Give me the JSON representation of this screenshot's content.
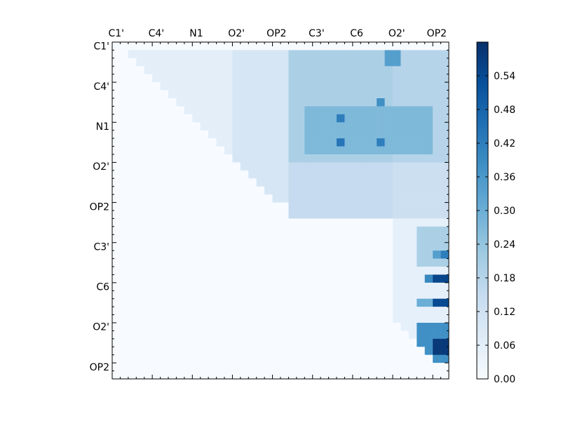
{
  "chart_data": {
    "type": "heatmap",
    "title": "",
    "xlabel": "",
    "ylabel": "",
    "grid": false,
    "x_tick_labels": [
      "C1'",
      "C4'",
      "N1",
      "O2'",
      "OP2",
      "C3'",
      "C6",
      "O2'",
      "OP2"
    ],
    "y_tick_labels": [
      "C1'",
      "C4'",
      "N1",
      "O2'",
      "OP2",
      "C3'",
      "C6",
      "O2'",
      "OP2"
    ],
    "matrix_size": 42,
    "tick_every": 5,
    "value_range": [
      0.0,
      0.6
    ],
    "colormap": "Blues",
    "colorbar": {
      "placement": "right",
      "ticks": [
        0.0,
        0.06,
        0.12,
        0.18,
        0.24,
        0.3,
        0.36,
        0.42,
        0.48,
        0.54
      ],
      "tick_labels": [
        "0.00",
        "0.06",
        "0.12",
        "0.18",
        "0.24",
        "0.30",
        "0.36",
        "0.42",
        "0.48",
        "0.54"
      ],
      "min": 0.0,
      "max": 0.6
    },
    "blocks": [
      {
        "r0": 1,
        "r1": 14,
        "c0": 2,
        "c1": 15,
        "v": 0.06
      },
      {
        "r0": 1,
        "r1": 20,
        "c0": 15,
        "c1": 22,
        "v": 0.1
      },
      {
        "r0": 1,
        "r1": 22,
        "c0": 22,
        "c1": 30,
        "v": 0.2
      },
      {
        "r0": 1,
        "r1": 22,
        "c0": 30,
        "c1": 35,
        "v": 0.2
      },
      {
        "r0": 1,
        "r1": 22,
        "c0": 35,
        "c1": 42,
        "v": 0.18
      },
      {
        "r0": 8,
        "r1": 14,
        "c0": 24,
        "c1": 40,
        "v": 0.27
      },
      {
        "r0": 1,
        "r1": 3,
        "c0": 34,
        "c1": 36,
        "v": 0.34
      },
      {
        "r0": 9,
        "r1": 10,
        "c0": 28,
        "c1": 29,
        "v": 0.42
      },
      {
        "r0": 12,
        "r1": 13,
        "c0": 28,
        "c1": 29,
        "v": 0.44
      },
      {
        "r0": 12,
        "r1": 13,
        "c0": 33,
        "c1": 34,
        "v": 0.42
      },
      {
        "r0": 7,
        "r1": 8,
        "c0": 33,
        "c1": 34,
        "v": 0.38
      },
      {
        "r0": 15,
        "r1": 22,
        "c0": 22,
        "c1": 35,
        "v": 0.15
      },
      {
        "r0": 15,
        "r1": 22,
        "c0": 35,
        "c1": 42,
        "v": 0.13
      },
      {
        "r0": 22,
        "r1": 40,
        "c0": 35,
        "c1": 42,
        "v": 0.05
      },
      {
        "r0": 23,
        "r1": 28,
        "c0": 38,
        "c1": 42,
        "v": 0.2
      },
      {
        "r0": 26,
        "r1": 27,
        "c0": 40,
        "c1": 41,
        "v": 0.34
      },
      {
        "r0": 26,
        "r1": 27,
        "c0": 41,
        "c1": 42,
        "v": 0.42
      },
      {
        "r0": 29,
        "r1": 30,
        "c0": 40,
        "c1": 42,
        "v": 0.55
      },
      {
        "r0": 29,
        "r1": 30,
        "c0": 39,
        "c1": 40,
        "v": 0.4
      },
      {
        "r0": 32,
        "r1": 33,
        "c0": 40,
        "c1": 42,
        "v": 0.54
      },
      {
        "r0": 32,
        "r1": 33,
        "c0": 38,
        "c1": 40,
        "v": 0.3
      },
      {
        "r0": 35,
        "r1": 40,
        "c0": 38,
        "c1": 42,
        "v": 0.38
      },
      {
        "r0": 37,
        "r1": 39,
        "c0": 40,
        "c1": 42,
        "v": 0.58
      },
      {
        "r0": 39,
        "r1": 41,
        "c0": 38,
        "c1": 40,
        "v": 0.12
      }
    ]
  }
}
